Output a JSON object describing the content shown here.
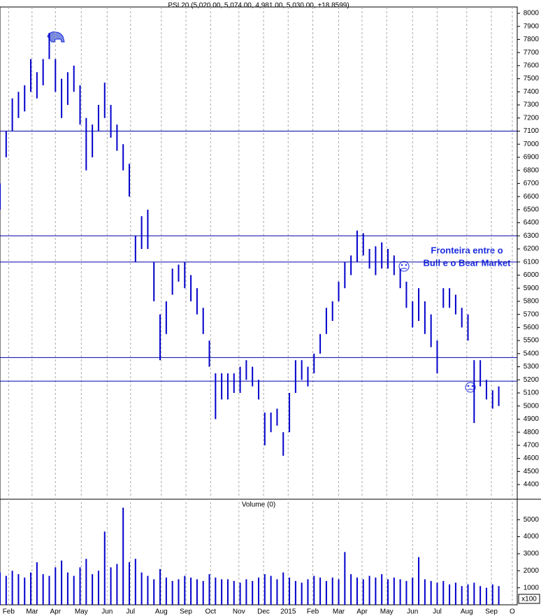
{
  "chart_data": [
    {
      "type": "ohlc",
      "title": "PSI 20 (5,020.00, 5,074.00, 4,981.00, 5,030.00, +18.8599)",
      "color": "#0000cc",
      "x": [
        0,
        5,
        10,
        15,
        20,
        25,
        30,
        35,
        40,
        45,
        50,
        55,
        60,
        65,
        70,
        75,
        80,
        85,
        90,
        95,
        100,
        105,
        110,
        115,
        120,
        125,
        130,
        135,
        140,
        145,
        150,
        155,
        160,
        165,
        170,
        175,
        180,
        185,
        190,
        195,
        200,
        205,
        210,
        215,
        220,
        225,
        230,
        235,
        240,
        245,
        250,
        255,
        260,
        265,
        270,
        275,
        280,
        285,
        290,
        295,
        300,
        305,
        310,
        315,
        320,
        325,
        330,
        335,
        340,
        345,
        350,
        355,
        360,
        365,
        370,
        375,
        380,
        385,
        390,
        395,
        400,
        405
      ],
      "high": [
        6700,
        7100,
        7350,
        7400,
        7450,
        7650,
        7550,
        7650,
        7850,
        7650,
        7500,
        7550,
        7600,
        7450,
        7200,
        7150,
        7300,
        7470,
        7300,
        7150,
        7000,
        6850,
        6300,
        6450,
        6500,
        6100,
        5700,
        5800,
        6050,
        6080,
        6100,
        6000,
        5900,
        5750,
        5500,
        5250,
        5250,
        5250,
        5250,
        5300,
        5350,
        5300,
        5200,
        4950,
        4950,
        4980,
        4800,
        5100,
        5350,
        5350,
        5300,
        5400,
        5550,
        5750,
        5800,
        5950,
        6100,
        6150,
        6340,
        6320,
        6200,
        6220,
        6250,
        6200,
        6150,
        6050,
        5950,
        5800,
        5900,
        5800,
        5700,
        5500,
        5900,
        5900,
        5850,
        5750,
        5700,
        5350,
        5350,
        5200,
        5120,
        5150
      ],
      "low": [
        6500,
        6900,
        7100,
        7200,
        7250,
        7400,
        7350,
        7450,
        7650,
        7400,
        7200,
        7300,
        7400,
        7150,
        6800,
        6900,
        7100,
        7200,
        7050,
        6950,
        6800,
        6600,
        6100,
        6200,
        6200,
        5800,
        5350,
        5550,
        5850,
        5950,
        5900,
        5800,
        5700,
        5550,
        5300,
        4900,
        5050,
        5050,
        5100,
        5100,
        5200,
        5150,
        5050,
        4700,
        4800,
        4850,
        4620,
        4800,
        5100,
        5200,
        5150,
        5250,
        5400,
        5550,
        5650,
        5800,
        5900,
        6000,
        6100,
        6150,
        6050,
        6000,
        6050,
        6050,
        6000,
        5900,
        5750,
        5600,
        5650,
        5550,
        5450,
        5250,
        5750,
        5750,
        5700,
        5600,
        5500,
        4870,
        5150,
        5050,
        4980,
        5000
      ],
      "xlim": [
        0,
        420
      ],
      "xticks": [
        {
          "value": 7,
          "label": "Feb"
        },
        {
          "value": 26,
          "label": "Mar"
        },
        {
          "value": 45,
          "label": "Apr"
        },
        {
          "value": 66,
          "label": "May"
        },
        {
          "value": 87,
          "label": "Jun"
        },
        {
          "value": 106,
          "label": "Jul"
        },
        {
          "value": 131,
          "label": "Aug"
        },
        {
          "value": 151,
          "label": "Sep"
        },
        {
          "value": 171,
          "label": "Oct"
        },
        {
          "value": 194,
          "label": "Nov"
        },
        {
          "value": 214,
          "label": "Dec"
        },
        {
          "value": 234,
          "label": "2015"
        },
        {
          "value": 254,
          "label": "Feb"
        },
        {
          "value": 275,
          "label": "Mar"
        },
        {
          "value": 294,
          "label": "Apr"
        },
        {
          "value": 314,
          "label": "May"
        },
        {
          "value": 335,
          "label": "Jun"
        },
        {
          "value": 355,
          "label": "Jul"
        },
        {
          "value": 379,
          "label": "Aug"
        },
        {
          "value": 399,
          "label": "Sep"
        },
        {
          "value": 416,
          "label": "O"
        }
      ],
      "ylim": [
        4288,
        8048
      ],
      "yticks": [
        4400,
        4500,
        4600,
        4700,
        4800,
        4900,
        5000,
        5100,
        5200,
        5300,
        5400,
        5500,
        5600,
        5700,
        5800,
        5900,
        6000,
        6100,
        6200,
        6300,
        6400,
        6500,
        6600,
        6700,
        6800,
        6900,
        7000,
        7100,
        7200,
        7300,
        7400,
        7500,
        7600,
        7700,
        7800,
        7900,
        8000
      ],
      "hlines": [
        7100,
        6300,
        6100,
        5370,
        5190
      ],
      "annotation": [
        "Fronteira entre o",
        "Bull e o Bear Market"
      ]
    },
    {
      "type": "bar",
      "title": "Volume (0)",
      "color": "#0000cc",
      "unit_label": "x100",
      "x": [
        0,
        5,
        10,
        15,
        20,
        25,
        30,
        35,
        40,
        45,
        50,
        55,
        60,
        65,
        70,
        75,
        80,
        85,
        90,
        95,
        100,
        105,
        110,
        115,
        120,
        125,
        130,
        135,
        140,
        145,
        150,
        155,
        160,
        165,
        170,
        175,
        180,
        185,
        190,
        195,
        200,
        205,
        210,
        215,
        220,
        225,
        230,
        235,
        240,
        245,
        250,
        255,
        260,
        265,
        270,
        275,
        280,
        285,
        290,
        295,
        300,
        305,
        310,
        315,
        320,
        325,
        330,
        335,
        340,
        345,
        350,
        355,
        360,
        365,
        370,
        375,
        380,
        385,
        390,
        395,
        400,
        405
      ],
      "values": [
        1900,
        1700,
        2000,
        1800,
        1600,
        1900,
        2500,
        1800,
        1700,
        2200,
        2600,
        1900,
        1700,
        2200,
        2700,
        1800,
        2000,
        4300,
        2200,
        2400,
        5700,
        2500,
        2700,
        1900,
        1700,
        1500,
        2100,
        1600,
        1400,
        1500,
        1700,
        1600,
        1500,
        1400,
        1800,
        1600,
        1500,
        1500,
        1400,
        1300,
        1500,
        1400,
        1600,
        1800,
        1700,
        1500,
        1900,
        1600,
        1400,
        1300,
        1500,
        1700,
        1600,
        1400,
        1600,
        1500,
        3100,
        1800,
        1600,
        1500,
        1700,
        1600,
        1800,
        1500,
        1600,
        1500,
        1400,
        1600,
        2800,
        1500,
        1400,
        1300,
        1400,
        1200,
        1300,
        1100,
        1200,
        1300,
        1100,
        1000,
        1200,
        1100
      ],
      "xlim": [
        0,
        420
      ],
      "ylim": [
        0,
        6200
      ],
      "yticks": [
        1000,
        2000,
        3000,
        4000,
        5000
      ]
    }
  ]
}
